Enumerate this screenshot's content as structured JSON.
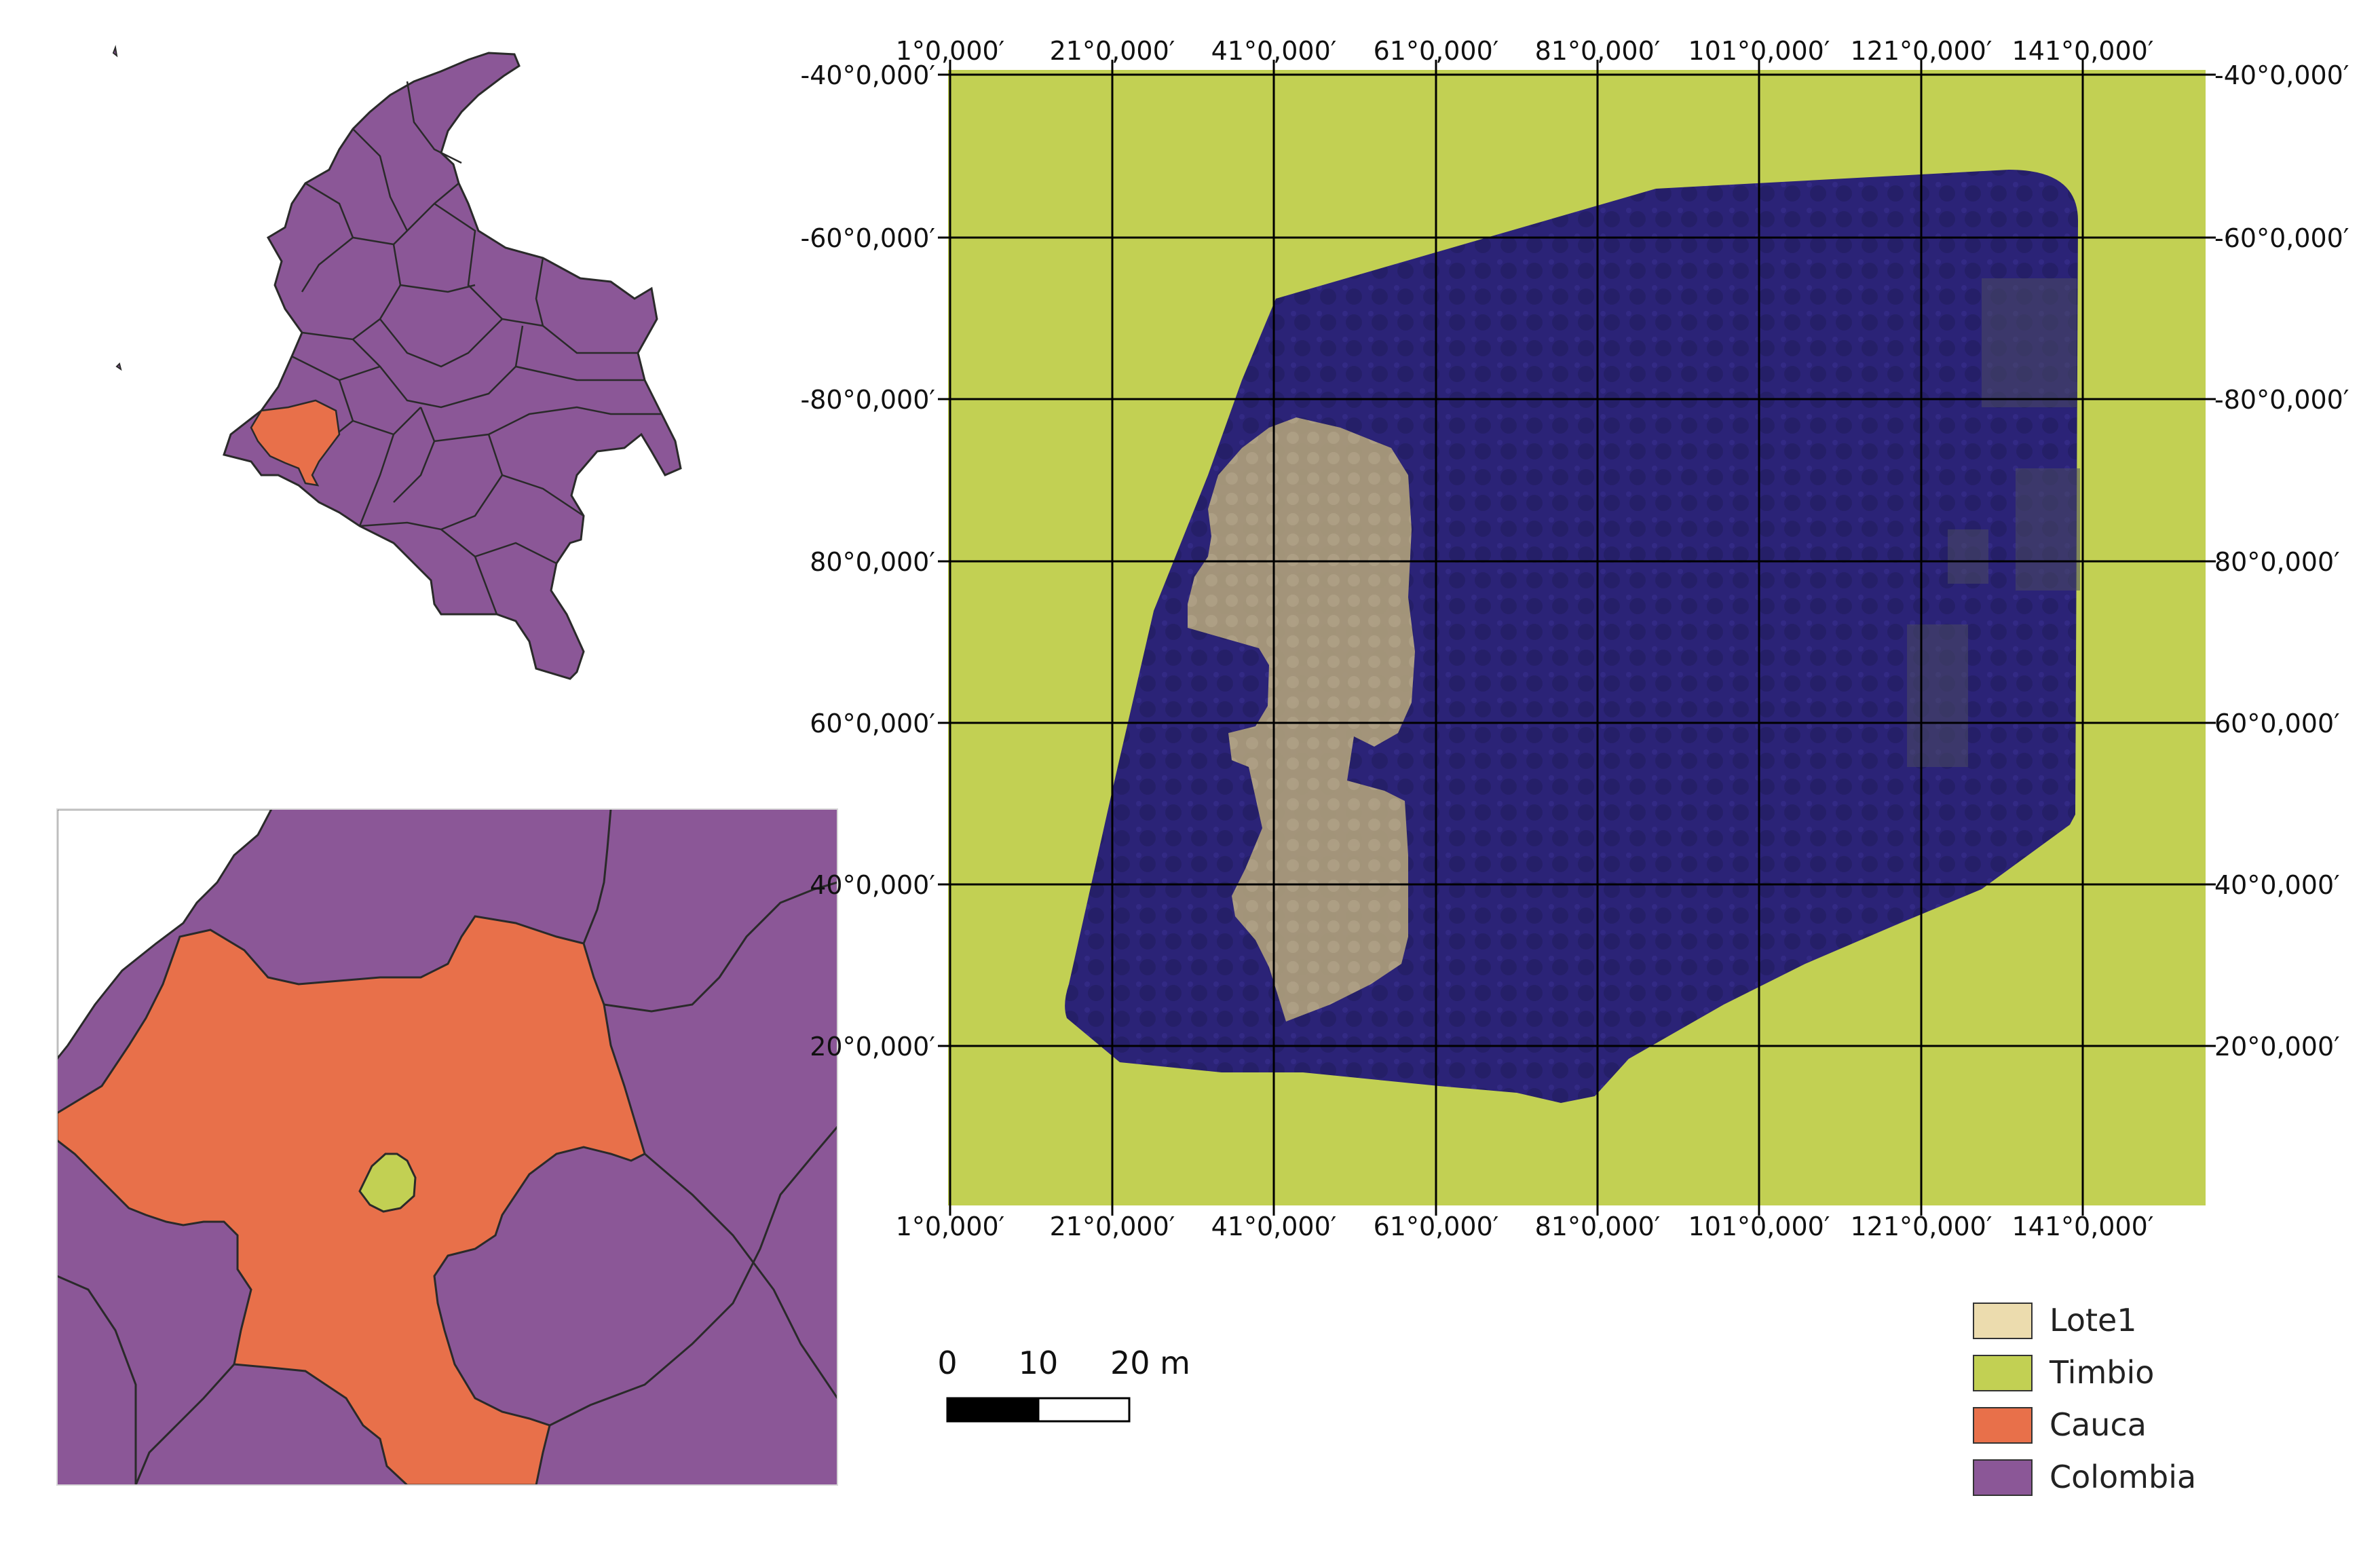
{
  "map": {
    "grid": {
      "x_labels": [
        "1°0,000′",
        "21°0,000′",
        "41°0,000′",
        "61°0,000′",
        "81°0,000′",
        "101°0,000′",
        "121°0,000′",
        "141°0,000′"
      ],
      "y_labels": [
        "-40°0,000′",
        "-60°0,000′",
        "-80°0,000′",
        "80°0,000′",
        "60°0,000′",
        "40°0,000′",
        "20°0,000′"
      ]
    },
    "scalebar": {
      "ticks": [
        "0",
        "10",
        "20 m"
      ]
    },
    "legend": [
      {
        "label": "Lote1",
        "color": "#ecdcae"
      },
      {
        "label": "Timbio",
        "color": "#c2d053"
      },
      {
        "label": "Cauca",
        "color": "#e8704a"
      },
      {
        "label": "Colombia",
        "color": "#8b5797"
      }
    ],
    "colors": {
      "timbio_background": "#c2d053",
      "orthophoto": "#2b2377",
      "lote1": "#a99a7a",
      "cauca": "#e8704a",
      "colombia": "#8b5797"
    },
    "icons": [
      "colombia-country-map",
      "cauca-inset-map",
      "orthophoto-raster",
      "scale-bar",
      "legend-swatches"
    ]
  }
}
